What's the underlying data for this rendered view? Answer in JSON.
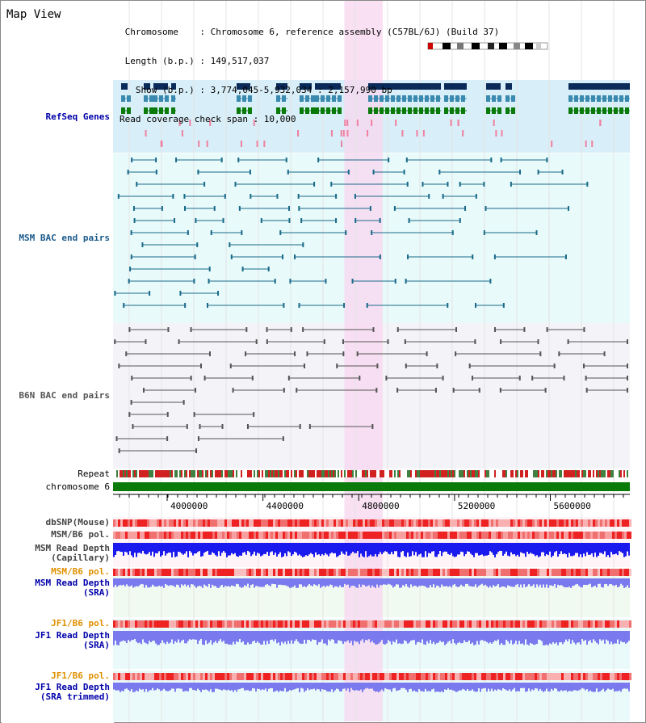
{
  "page": {
    "title": "Map View"
  },
  "header": {
    "lines": [
      " Chromosome    : Chromosome 6, reference assembly (C57BL/6J) (Build 37)",
      " Length (b.p.) : 149,517,037",
      "   Show (b.p.) : 3,774,045-5,932,034 : 2,157,990 bp",
      "Read coverage check span : 10,000"
    ]
  },
  "tracks": {
    "refseq": {
      "label": "RefSeq Genes"
    },
    "msm_bac": {
      "label": "MSM BAC end pairs"
    },
    "b6n_bac": {
      "label": "B6N BAC end pairs"
    },
    "repeat": {
      "label": "Repeat"
    },
    "chromosome": {
      "label": "chromosome 6"
    },
    "dbsnp": {
      "label": "dbSNP(Mouse)"
    },
    "msm_b6_pol_1": {
      "label": "MSM/B6 pol."
    },
    "msm_depth_cap": {
      "label": "MSM Read Depth\n(Capillary)"
    },
    "msm_b6_pol_2": {
      "label": "MSM/B6 pol."
    },
    "msm_depth_sra": {
      "label": "MSM Read Depth\n(SRA)"
    },
    "jf1_b6_pol_1": {
      "label": "JF1/B6 pol."
    },
    "jf1_depth_sra": {
      "label": "JF1 Read Depth\n(SRA)"
    },
    "jf1_b6_pol_2": {
      "label": "JF1/B6 pol."
    },
    "jf1_depth_trim": {
      "label": "JF1 Read Depth\n(SRA trimmed)"
    }
  },
  "axis": {
    "ticks": [
      {
        "value": 4000000,
        "label": "4000000"
      },
      {
        "value": 4400000,
        "label": "4400000"
      },
      {
        "value": 4800000,
        "label": "4800000"
      },
      {
        "value": 5200000,
        "label": "5200000"
      },
      {
        "value": 5600000,
        "label": "5600000"
      }
    ],
    "range": [
      3774045,
      5932034
    ]
  },
  "highlight": {
    "start": 4740000,
    "end": 4900000,
    "color": "#f8d8f0"
  },
  "colors": {
    "refseq_bg": "#d8eef8",
    "msm_bg": "#e8fafa",
    "b6n_bg": "#f4f4f8",
    "gene_navy": "#0a2a5a",
    "gene_teal": "#3a8ab0",
    "gene_green": "#0a7a0a",
    "msm_pair": "#1a6a8a",
    "b6n_pair": "#555555",
    "chrom_green": "#0a7a0a",
    "depth_blue": "#1a1aee",
    "depth_light": "#7a7aee",
    "pol_red": "#ee3333",
    "label_orange": "#e09000",
    "label_blue": "#0000aa"
  }
}
